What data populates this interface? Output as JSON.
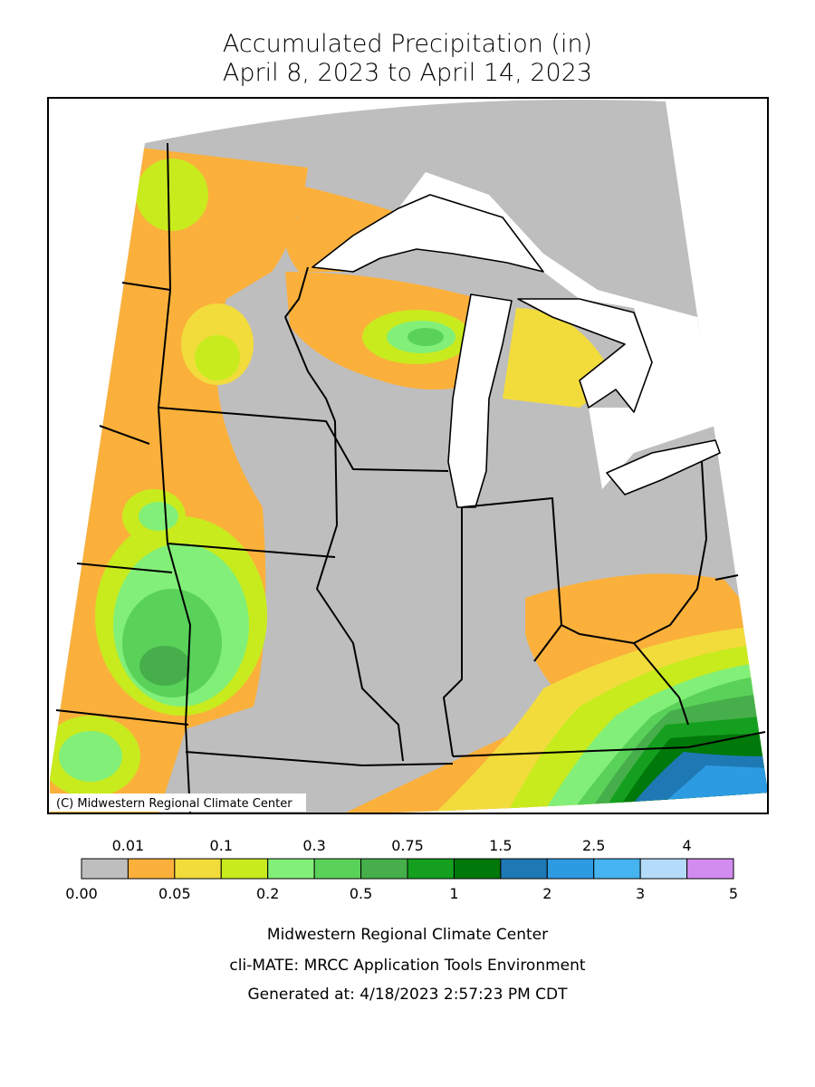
{
  "title": [
    "Accumulated Precipitation (in)",
    "April 8, 2023 to April 14, 2023"
  ],
  "map": {
    "credit": "(C) Midwestern Regional Climate Center"
  },
  "legend": {
    "colors": [
      "#bebebe",
      "#fbb03b",
      "#f2dc3c",
      "#c8eb1e",
      "#82ef78",
      "#5ad25a",
      "#46af4b",
      "#14a01e",
      "#00780a",
      "#1e78b4",
      "#2d9be1",
      "#46b4f0",
      "#b4dcfa",
      "#d28cf0"
    ],
    "upper_labels": [
      "0.01",
      "0.1",
      "0.3",
      "0.75",
      "1.5",
      "2.5",
      "4"
    ],
    "lower_labels": [
      "0.00",
      "0.05",
      "0.2",
      "0.5",
      "1",
      "2",
      "3",
      "5"
    ]
  },
  "footer": [
    "Midwestern Regional Climate Center",
    "cli-MATE: MRCC Application Tools Environment",
    "Generated at: 4/18/2023 2:57:23 PM CDT"
  ]
}
